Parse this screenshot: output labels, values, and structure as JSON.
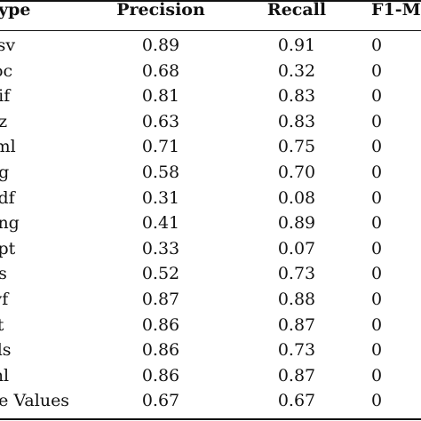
{
  "table": {
    "headers": [
      "Type",
      "Precision",
      "Recall",
      "F1-M"
    ],
    "rows": [
      {
        "type": "csv",
        "precision": "0.89",
        "recall": "0.91",
        "f1": "0"
      },
      {
        "type": "loc",
        "precision": "0.68",
        "recall": "0.32",
        "f1": "0"
      },
      {
        "type": "gif",
        "precision": "0.81",
        "recall": "0.83",
        "f1": "0"
      },
      {
        "type": "gz",
        "precision": "0.63",
        "recall": "0.83",
        "f1": "0"
      },
      {
        "type": "tml",
        "precision": "0.71",
        "recall": "0.75",
        "f1": "0"
      },
      {
        "type": "pg",
        "precision": "0.58",
        "recall": "0.70",
        "f1": "0"
      },
      {
        "type": "odf",
        "precision": "0.31",
        "recall": "0.08",
        "f1": "0"
      },
      {
        "type": "ong",
        "precision": "0.41",
        "recall": "0.89",
        "f1": "0"
      },
      {
        "type": "opt",
        "precision": "0.33",
        "recall": "0.07",
        "f1": "0"
      },
      {
        "type": "ps",
        "precision": "0.52",
        "recall": "0.73",
        "f1": "0"
      },
      {
        "type": "wf",
        "precision": "0.87",
        "recall": "0.88",
        "f1": "0"
      },
      {
        "type": "xt",
        "precision": "0.86",
        "recall": "0.87",
        "f1": "0"
      },
      {
        "type": "xls",
        "precision": "0.86",
        "recall": "0.73",
        "f1": "0"
      },
      {
        "type": "ml",
        "precision": "0.86",
        "recall": "0.87",
        "f1": "0"
      },
      {
        "type": "ge Values",
        "precision": "0.67",
        "recall": "0.67",
        "f1": "0"
      }
    ]
  }
}
